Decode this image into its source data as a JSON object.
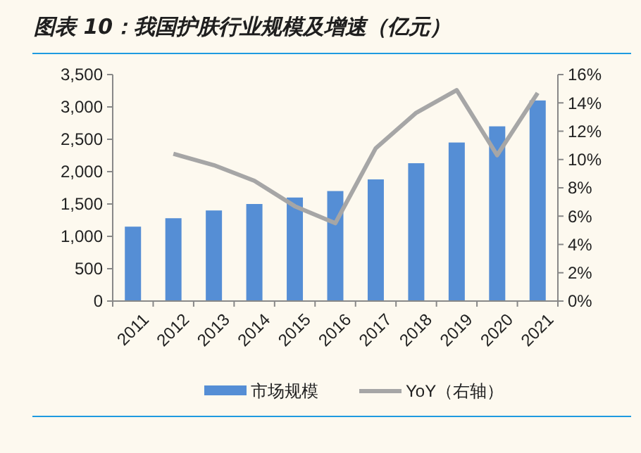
{
  "chart_data": {
    "type": "bar",
    "title": "图表 10：我国护肤行业规模及增速（亿元）",
    "categories": [
      "2011",
      "2012",
      "2013",
      "2014",
      "2015",
      "2016",
      "2017",
      "2018",
      "2019",
      "2020",
      "2021"
    ],
    "series": [
      {
        "name": "市场规模",
        "color": "#558ed5",
        "values": [
          1150,
          1280,
          1400,
          1500,
          1600,
          1700,
          1880,
          2130,
          2450,
          2700,
          3100
        ]
      },
      {
        "name": "YoY（右轴）",
        "type": "line",
        "axis": "y2",
        "color": "#a6a6a6",
        "values": [
          null,
          10.4,
          9.6,
          8.5,
          6.7,
          5.5,
          10.8,
          13.3,
          14.9,
          10.3,
          14.7
        ]
      }
    ],
    "ylim": [
      0,
      3500
    ],
    "yticks": [
      0,
      {
        "value": 500,
        "label": "500"
      },
      {
        "value": 1000,
        "label": "1,000"
      },
      {
        "value": 1500,
        "label": "1,500"
      },
      {
        "value": 2000,
        "label": "2,000"
      },
      {
        "value": 2500,
        "label": "2,500"
      },
      {
        "value": 3000,
        "label": "3,000"
      },
      {
        "value": 3500,
        "label": "3,500"
      }
    ],
    "y2lim": [
      0,
      16
    ],
    "y2ticks": [
      {
        "value": 0,
        "label": "0%"
      },
      {
        "value": 2,
        "label": "2%"
      },
      {
        "value": 4,
        "label": "4%"
      },
      {
        "value": 6,
        "label": "6%"
      },
      {
        "value": 8,
        "label": "8%"
      },
      {
        "value": 10,
        "label": "10%"
      },
      {
        "value": 12,
        "label": "12%"
      },
      {
        "value": 14,
        "label": "14%"
      },
      {
        "value": 16,
        "label": "16%"
      }
    ],
    "grid": false,
    "legend": "bottom",
    "marker": "none"
  }
}
